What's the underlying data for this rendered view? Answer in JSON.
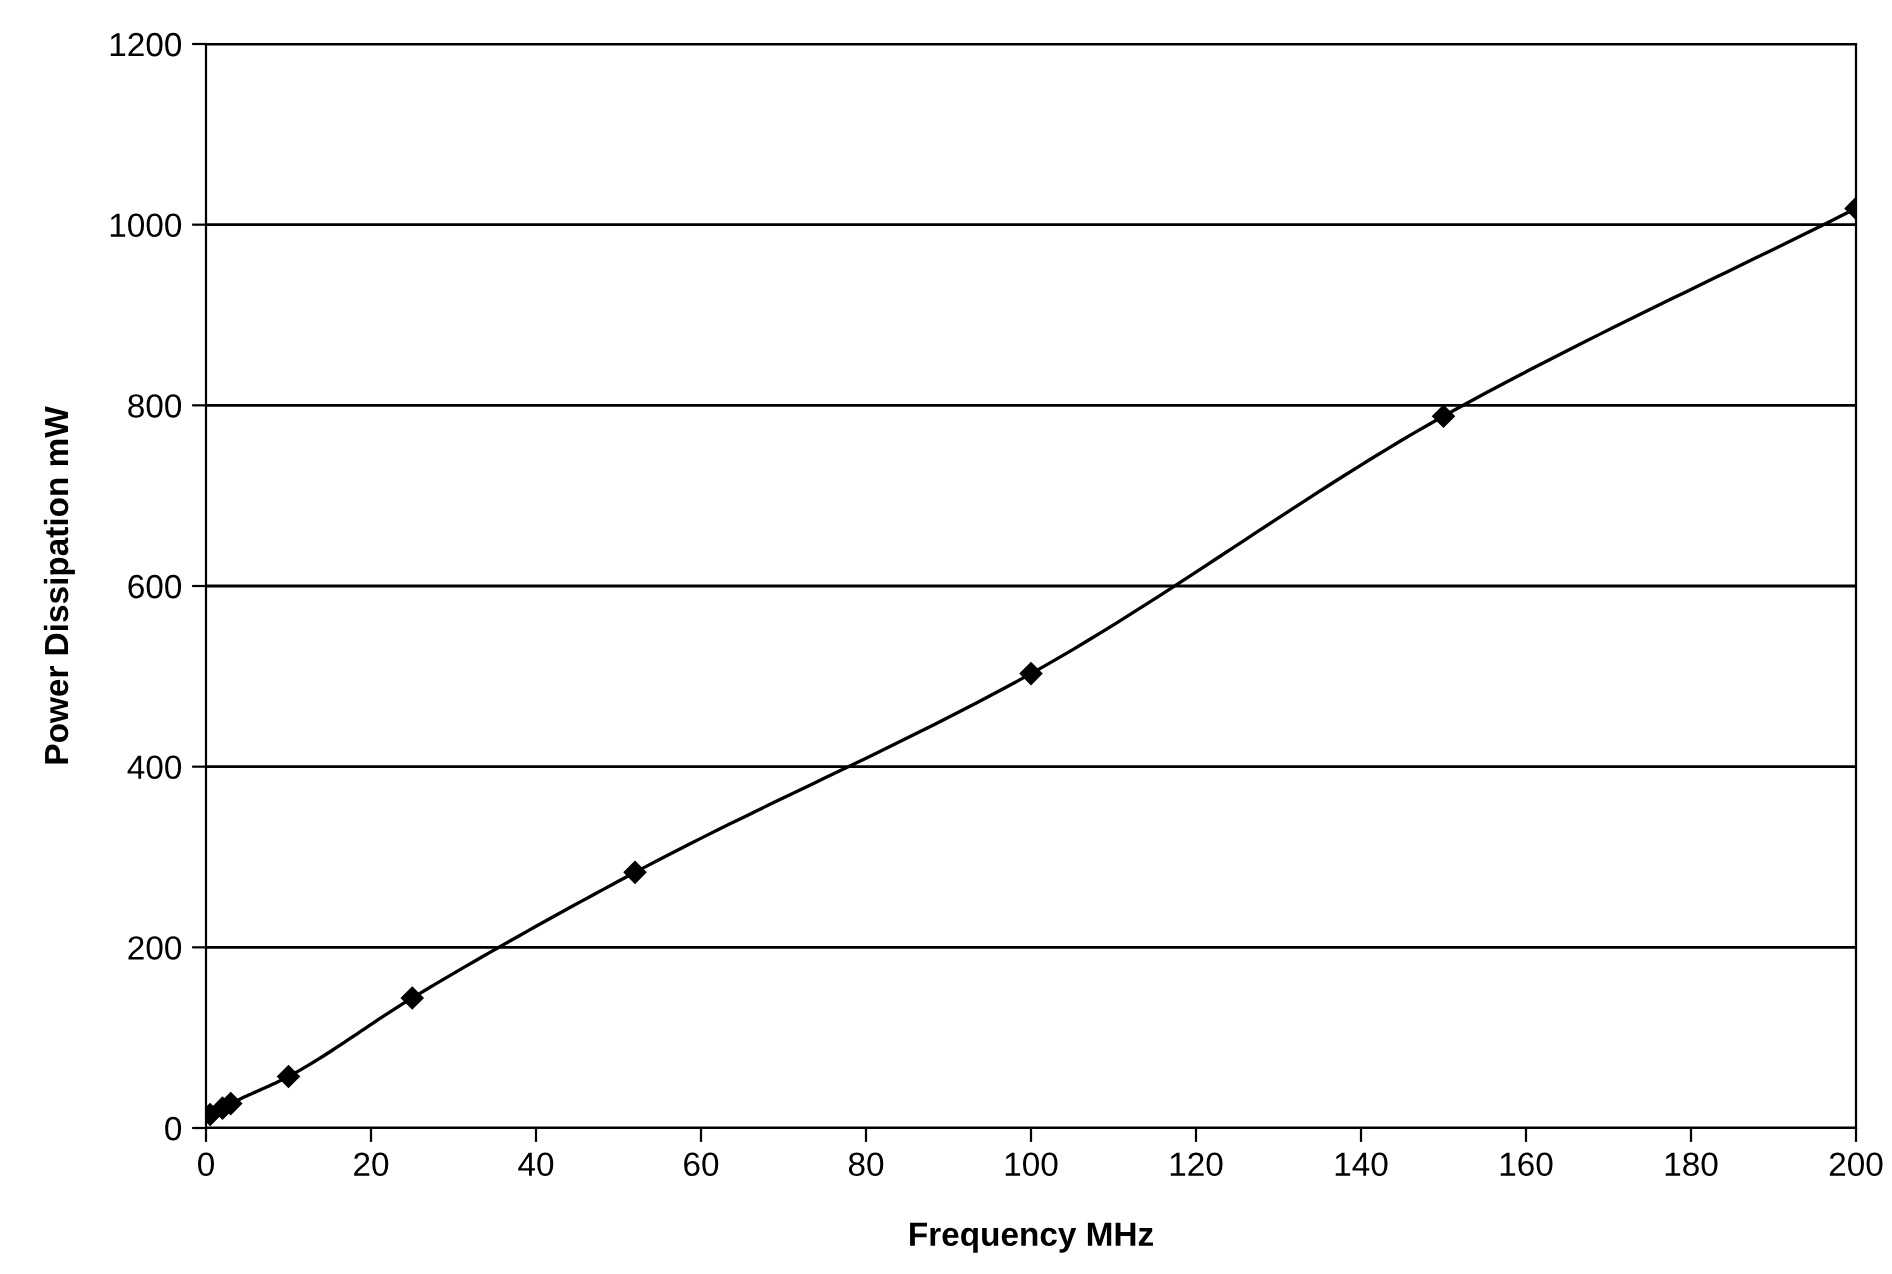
{
  "chart_data": {
    "type": "line",
    "xlabel": "Frequency MHz",
    "ylabel": "Power Dissipation mW",
    "x": [
      0.5,
      2,
      3,
      10,
      25,
      52,
      100,
      150,
      200
    ],
    "series": [
      {
        "color": "#000000",
        "values": [
          15,
          22,
          27,
          57,
          144,
          283,
          503,
          788,
          1018
        ]
      }
    ],
    "xlim": [
      0,
      200
    ],
    "xticks": [
      0,
      20,
      40,
      60,
      80,
      100,
      120,
      140,
      160,
      180,
      200
    ],
    "ylim": [
      0,
      1200
    ],
    "yticks": [
      0,
      200,
      400,
      600,
      800,
      1000,
      1200
    ],
    "grid": "y",
    "marker": "diamond",
    "line_style": "solid",
    "legend": false
  }
}
